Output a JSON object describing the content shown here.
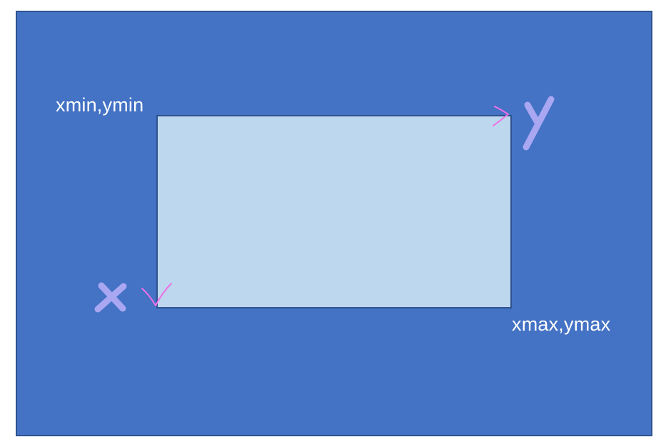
{
  "labels": {
    "top_left": "xmin,ymin",
    "bottom_right": "xmax,ymax"
  },
  "annotations": {
    "x_letter": "X",
    "y_letter": "Y"
  },
  "colors": {
    "page_background": "#ffffff",
    "outer_panel": "#4472c4",
    "outer_border": "#2f528f",
    "bounding_box": "#bdd7ee",
    "bounding_box_border": "#2f528f",
    "label_text": "#ffffff",
    "handwritten_letters": "#a9a7f2",
    "handwritten_arrows": "#f070e6"
  }
}
